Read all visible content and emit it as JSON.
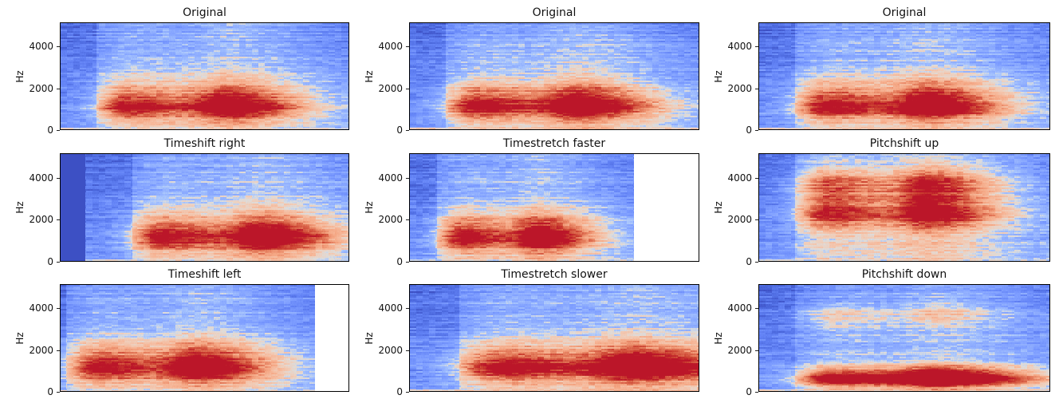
{
  "figure": {
    "background": "#ffffff",
    "text_color": "#111111",
    "spine_color": "#000000",
    "description": "3x3 grid of spectrograms comparing audio data-augmentation transforms"
  },
  "chart_data": {
    "type": "heatmap",
    "subtype": "spectrogram",
    "grid": [
      3,
      3
    ],
    "colormap": "coolwarm",
    "colors": {
      "cmap_min": "#3b4cc0",
      "cmap_mid": "#dddcdc",
      "cmap_max": "#b40426"
    },
    "ylabel": "Hz",
    "yticks": [
      0,
      2000,
      4000
    ],
    "ylim": [
      0,
      5160
    ],
    "xticks_visible": false,
    "legend": "none",
    "panels": [
      {
        "title": "Original",
        "row": 0,
        "col": 0,
        "ylabel": "Hz",
        "yticks": [
          0,
          2000,
          4000
        ],
        "onset": 0.125,
        "solid_left_fraction": 0,
        "blank_right_fraction": 0,
        "bursts": [
          {
            "x": 0.235,
            "hz": 1400,
            "sx": 0.085,
            "sy": 700,
            "amp": 0.4,
            "tail": 2.5
          },
          {
            "x": 0.235,
            "hz": 1000,
            "sx": 0.08,
            "sy": 300,
            "amp": 0.22,
            "tail": 2.5
          },
          {
            "x": 0.595,
            "hz": 1400,
            "sx": 0.085,
            "sy": 700,
            "amp": 0.4,
            "tail": 2.5
          },
          {
            "x": 0.595,
            "hz": 1000,
            "sx": 0.08,
            "sy": 300,
            "amp": 0.22,
            "tail": 2.5
          }
        ],
        "columns": [
          {
            "x": 0.265,
            "sx": 0.12,
            "amp": 0.18,
            "tail": 1.9
          },
          {
            "x": 0.625,
            "sx": 0.12,
            "amp": 0.18,
            "tail": 1.9
          }
        ]
      },
      {
        "title": "Original",
        "row": 0,
        "col": 1,
        "ylabel": "Hz",
        "yticks": [
          0,
          2000,
          4000
        ],
        "onset": 0.125,
        "solid_left_fraction": 0,
        "blank_right_fraction": 0,
        "bursts": [
          {
            "x": 0.235,
            "hz": 1400,
            "sx": 0.085,
            "sy": 700,
            "amp": 0.4,
            "tail": 2.5
          },
          {
            "x": 0.235,
            "hz": 1000,
            "sx": 0.08,
            "sy": 300,
            "amp": 0.22,
            "tail": 2.5
          },
          {
            "x": 0.595,
            "hz": 1400,
            "sx": 0.085,
            "sy": 700,
            "amp": 0.4,
            "tail": 2.5
          },
          {
            "x": 0.595,
            "hz": 1000,
            "sx": 0.08,
            "sy": 300,
            "amp": 0.22,
            "tail": 2.5
          }
        ],
        "columns": [
          {
            "x": 0.265,
            "sx": 0.12,
            "amp": 0.18,
            "tail": 1.9
          },
          {
            "x": 0.625,
            "sx": 0.12,
            "amp": 0.18,
            "tail": 1.9
          }
        ]
      },
      {
        "title": "Original",
        "row": 0,
        "col": 2,
        "ylabel": "Hz",
        "yticks": [
          0,
          2000,
          4000
        ],
        "onset": 0.125,
        "solid_left_fraction": 0,
        "blank_right_fraction": 0,
        "bursts": [
          {
            "x": 0.235,
            "hz": 1400,
            "sx": 0.085,
            "sy": 700,
            "amp": 0.4,
            "tail": 2.5
          },
          {
            "x": 0.235,
            "hz": 1000,
            "sx": 0.08,
            "sy": 300,
            "amp": 0.22,
            "tail": 2.5
          },
          {
            "x": 0.595,
            "hz": 1400,
            "sx": 0.085,
            "sy": 700,
            "amp": 0.4,
            "tail": 2.5
          },
          {
            "x": 0.595,
            "hz": 1000,
            "sx": 0.08,
            "sy": 300,
            "amp": 0.22,
            "tail": 2.5
          }
        ],
        "columns": [
          {
            "x": 0.265,
            "sx": 0.12,
            "amp": 0.18,
            "tail": 1.9
          },
          {
            "x": 0.625,
            "sx": 0.12,
            "amp": 0.18,
            "tail": 1.9
          }
        ]
      },
      {
        "title": "Timeshift right",
        "row": 1,
        "col": 0,
        "ylabel": "Hz",
        "yticks": [
          0,
          2000,
          4000
        ],
        "onset": 0.25,
        "solid_left_fraction": 0.085,
        "blank_right_fraction": 0,
        "bursts": [
          {
            "x": 0.35,
            "hz": 1400,
            "sx": 0.085,
            "sy": 700,
            "amp": 0.4,
            "tail": 2.5
          },
          {
            "x": 0.35,
            "hz": 1000,
            "sx": 0.08,
            "sy": 300,
            "amp": 0.22,
            "tail": 2.5
          },
          {
            "x": 0.71,
            "hz": 1400,
            "sx": 0.085,
            "sy": 700,
            "amp": 0.4,
            "tail": 2.5
          },
          {
            "x": 0.71,
            "hz": 1000,
            "sx": 0.08,
            "sy": 300,
            "amp": 0.22,
            "tail": 2.5
          }
        ],
        "columns": [
          {
            "x": 0.38,
            "sx": 0.12,
            "amp": 0.18,
            "tail": 1.9
          },
          {
            "x": 0.74,
            "sx": 0.12,
            "amp": 0.18,
            "tail": 1.9
          }
        ]
      },
      {
        "title": "Timestretch faster",
        "row": 1,
        "col": 1,
        "ylabel": "Hz",
        "yticks": [
          0,
          2000,
          4000
        ],
        "onset": 0.095,
        "solid_left_fraction": 0,
        "blank_right_fraction": 0.225,
        "bursts": [
          {
            "x": 0.181,
            "hz": 1400,
            "sx": 0.065,
            "sy": 700,
            "amp": 0.4,
            "tail": 2.3
          },
          {
            "x": 0.181,
            "hz": 1000,
            "sx": 0.062,
            "sy": 300,
            "amp": 0.22,
            "tail": 2.3
          },
          {
            "x": 0.458,
            "hz": 1400,
            "sx": 0.065,
            "sy": 700,
            "amp": 0.4,
            "tail": 2.3
          },
          {
            "x": 0.458,
            "hz": 1000,
            "sx": 0.062,
            "sy": 300,
            "amp": 0.22,
            "tail": 2.3
          }
        ],
        "columns": [
          {
            "x": 0.204,
            "sx": 0.092,
            "amp": 0.18,
            "tail": 1.9
          },
          {
            "x": 0.481,
            "sx": 0.092,
            "amp": 0.18,
            "tail": 1.9
          }
        ]
      },
      {
        "title": "Pitchshift up",
        "row": 1,
        "col": 2,
        "ylabel": "Hz",
        "yticks": [
          0,
          2000,
          4000
        ],
        "onset": 0.125,
        "solid_left_fraction": 0,
        "blank_right_fraction": 0,
        "bursts": [
          {
            "x": 0.235,
            "hz": 3000,
            "sx": 0.085,
            "sy": 1000,
            "amp": 0.42,
            "tail": 2.3
          },
          {
            "x": 0.235,
            "hz": 2100,
            "sx": 0.08,
            "sy": 350,
            "amp": 0.2,
            "tail": 2.3
          },
          {
            "x": 0.235,
            "hz": 3900,
            "sx": 0.08,
            "sy": 350,
            "amp": 0.15,
            "tail": 2.3
          },
          {
            "x": 0.595,
            "hz": 3000,
            "sx": 0.085,
            "sy": 1000,
            "amp": 0.42,
            "tail": 2.3
          },
          {
            "x": 0.595,
            "hz": 2100,
            "sx": 0.08,
            "sy": 350,
            "amp": 0.2,
            "tail": 2.3
          },
          {
            "x": 0.595,
            "hz": 3900,
            "sx": 0.08,
            "sy": 350,
            "amp": 0.15,
            "tail": 2.3
          }
        ],
        "columns": [
          {
            "x": 0.265,
            "sx": 0.12,
            "amp": 0.2,
            "tail": 1.9
          },
          {
            "x": 0.625,
            "sx": 0.12,
            "amp": 0.2,
            "tail": 1.9
          }
        ]
      },
      {
        "title": "Timeshift left",
        "row": 2,
        "col": 0,
        "ylabel": "Hz",
        "yticks": [
          0,
          2000,
          4000
        ],
        "onset": 0.02,
        "solid_left_fraction": 0,
        "blank_right_fraction": 0.115,
        "bursts": [
          {
            "x": 0.13,
            "hz": 1400,
            "sx": 0.085,
            "sy": 700,
            "amp": 0.4,
            "tail": 2.5
          },
          {
            "x": 0.13,
            "hz": 1000,
            "sx": 0.08,
            "sy": 300,
            "amp": 0.22,
            "tail": 2.5
          },
          {
            "x": 0.49,
            "hz": 1400,
            "sx": 0.085,
            "sy": 700,
            "amp": 0.4,
            "tail": 2.5
          },
          {
            "x": 0.49,
            "hz": 1000,
            "sx": 0.08,
            "sy": 300,
            "amp": 0.22,
            "tail": 2.5
          }
        ],
        "columns": [
          {
            "x": 0.16,
            "sx": 0.12,
            "amp": 0.18,
            "tail": 1.9
          },
          {
            "x": 0.52,
            "sx": 0.12,
            "amp": 0.18,
            "tail": 1.9
          }
        ]
      },
      {
        "title": "Timestretch slower",
        "row": 2,
        "col": 1,
        "ylabel": "Hz",
        "yticks": [
          0,
          2000,
          4000
        ],
        "onset": 0.17,
        "solid_left_fraction": 0,
        "blank_right_fraction": 0,
        "bursts": [
          {
            "x": 0.315,
            "hz": 1400,
            "sx": 0.114,
            "sy": 700,
            "amp": 0.4,
            "tail": 2.8
          },
          {
            "x": 0.315,
            "hz": 1000,
            "sx": 0.107,
            "sy": 300,
            "amp": 0.22,
            "tail": 2.8
          },
          {
            "x": 0.797,
            "hz": 1400,
            "sx": 0.114,
            "sy": 700,
            "amp": 0.4,
            "tail": 2.8
          },
          {
            "x": 0.797,
            "hz": 1000,
            "sx": 0.107,
            "sy": 300,
            "amp": 0.22,
            "tail": 2.8
          }
        ],
        "columns": [
          {
            "x": 0.355,
            "sx": 0.16,
            "amp": 0.18,
            "tail": 1.9
          },
          {
            "x": 0.838,
            "sx": 0.16,
            "amp": 0.18,
            "tail": 1.9
          }
        ]
      },
      {
        "title": "Pitchshift down",
        "row": 2,
        "col": 2,
        "ylabel": "Hz",
        "yticks": [
          0,
          2000,
          4000
        ],
        "onset": 0.125,
        "solid_left_fraction": 0,
        "blank_right_fraction": 0,
        "bursts": [
          {
            "x": 0.26,
            "hz": 700,
            "sx": 0.1,
            "sy": 380,
            "amp": 0.48,
            "tail": 2.8
          },
          {
            "x": 0.26,
            "hz": 550,
            "sx": 0.095,
            "sy": 200,
            "amp": 0.22,
            "tail": 2.8
          },
          {
            "x": 0.26,
            "hz": 3650,
            "sx": 0.085,
            "sy": 450,
            "amp": 0.22,
            "tail": 2.0
          },
          {
            "x": 0.625,
            "hz": 700,
            "sx": 0.1,
            "sy": 380,
            "amp": 0.48,
            "tail": 2.8
          },
          {
            "x": 0.625,
            "hz": 550,
            "sx": 0.095,
            "sy": 200,
            "amp": 0.22,
            "tail": 2.8
          },
          {
            "x": 0.625,
            "hz": 3750,
            "sx": 0.085,
            "sy": 450,
            "amp": 0.2,
            "tail": 2.0
          }
        ],
        "columns": [
          {
            "x": 0.3,
            "sx": 0.12,
            "amp": 0.14,
            "tail": 1.9
          },
          {
            "x": 0.66,
            "sx": 0.12,
            "amp": 0.14,
            "tail": 1.9
          }
        ]
      }
    ]
  }
}
